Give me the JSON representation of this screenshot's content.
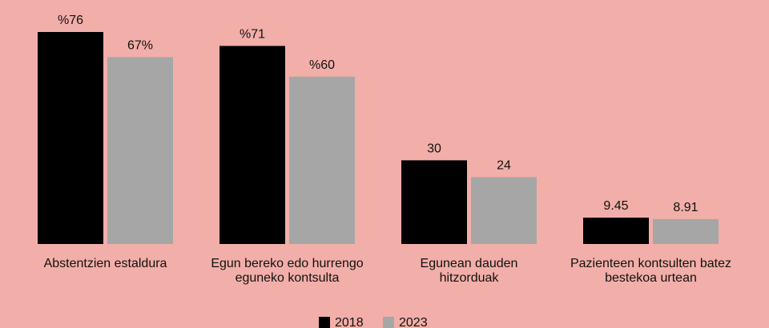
{
  "chart_data": {
    "type": "bar",
    "categories": [
      "Abstentzien estaldura",
      "Egun bereko edo hurrengo\neguneko kontsulta",
      "Egunean dauden\nhitzorduak",
      "Pazienteen kontsulten batez\nbestekoa urtean"
    ],
    "series": [
      {
        "name": "2018",
        "color": "#000000",
        "values": [
          76,
          71,
          30,
          9.45
        ],
        "value_labels": [
          "%76",
          "%71",
          "30",
          "9.45"
        ]
      },
      {
        "name": "2023",
        "color": "#a6a6a6",
        "values": [
          67,
          60,
          24,
          8.91
        ],
        "value_labels": [
          "67%",
          "%60",
          "24",
          "8.91"
        ]
      }
    ]
  }
}
